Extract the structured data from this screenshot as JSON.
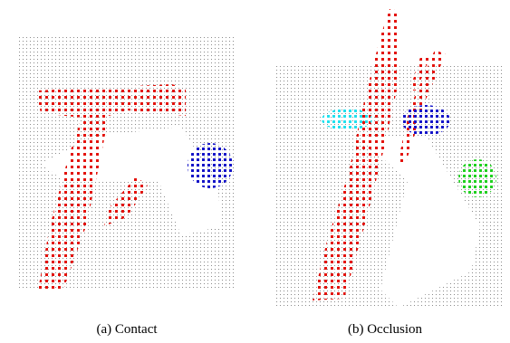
{
  "figure": {
    "subfigures": [
      {
        "caption": "(a) Contact"
      },
      {
        "caption": "(b) Occlusion"
      }
    ]
  }
}
